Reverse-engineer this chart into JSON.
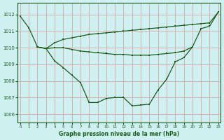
{
  "title": "Graphe pression niveau de la mer (hPa)",
  "bg_color": "#cef0f0",
  "grid_color": "#d8b0b0",
  "line_color": "#1a5c1a",
  "ylim": [
    1005.5,
    1012.7
  ],
  "xlim": [
    -0.3,
    23.3
  ],
  "yticks": [
    1006,
    1007,
    1008,
    1009,
    1010,
    1011,
    1012
  ],
  "xticks": [
    0,
    1,
    2,
    3,
    4,
    5,
    6,
    7,
    8,
    9,
    10,
    11,
    12,
    13,
    14,
    15,
    16,
    17,
    18,
    19,
    20,
    21,
    22,
    23
  ],
  "series": [
    {
      "x": [
        0,
        1,
        2,
        3,
        4,
        5,
        6,
        7,
        8,
        9,
        10,
        11,
        12,
        13,
        14,
        15,
        16,
        17,
        18,
        19,
        20,
        21,
        22,
        23
      ],
      "y": [
        1011.9,
        1011.2,
        1010.05,
        1009.95,
        1009.2,
        1008.8,
        1008.35,
        1007.9,
        1006.7,
        1006.7,
        1006.95,
        1007.0,
        1007.0,
        1006.5,
        1006.55,
        1006.6,
        1007.45,
        1008.1,
        1009.15,
        1009.4,
        1010.05,
        1011.15,
        1011.3,
        1012.15
      ]
    },
    {
      "x": [
        2,
        3,
        4,
        5,
        6,
        7,
        8,
        9,
        10,
        11,
        12,
        13,
        14,
        15,
        16,
        17,
        18,
        19,
        20,
        21,
        22,
        23
      ],
      "y": [
        1010.05,
        1009.95,
        1010.3,
        1010.5,
        1010.6,
        1010.7,
        1010.8,
        1010.85,
        1010.9,
        1010.95,
        1011.0,
        1011.05,
        1011.1,
        1011.15,
        1011.2,
        1011.25,
        1011.3,
        1011.35,
        1011.4,
        1011.45,
        1011.5,
        1012.15
      ]
    },
    {
      "x": [
        2,
        3,
        4,
        5,
        6,
        7,
        8,
        9,
        10,
        11,
        12,
        13,
        14,
        15,
        16,
        17,
        18,
        19,
        20
      ],
      "y": [
        1010.05,
        1009.95,
        1010.0,
        1010.0,
        1009.9,
        1009.8,
        1009.75,
        1009.7,
        1009.65,
        1009.6,
        1009.6,
        1009.55,
        1009.55,
        1009.55,
        1009.6,
        1009.65,
        1009.7,
        1009.8,
        1010.05
      ]
    }
  ]
}
